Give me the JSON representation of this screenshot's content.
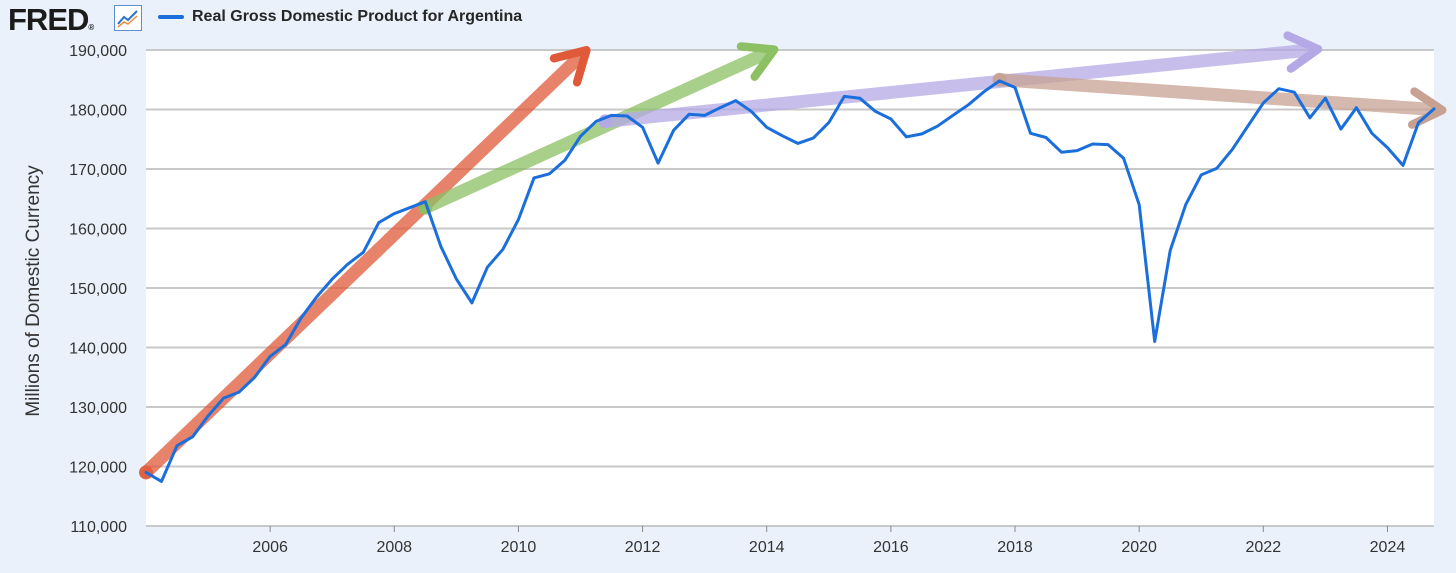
{
  "header": {
    "logo_text": "FRED",
    "logo_icon": "chart-line-icon"
  },
  "colors": {
    "series": "#1a6fdc",
    "background": "#eaf1fb",
    "plot_bg": "#ffffff",
    "grid": "#c8c8c8",
    "arrow_red": "#e05a3a",
    "arrow_green": "#8cc063",
    "arrow_purple": "#b4a8e6",
    "arrow_brown": "#c7a293"
  },
  "chart_data": {
    "type": "line",
    "title": "",
    "xlabel": "",
    "ylabel": "Millions of Domestic Currency",
    "ylim": [
      110000,
      190000
    ],
    "xlim": [
      2004.0,
      2024.75
    ],
    "y_ticks": [
      "110,000",
      "120,000",
      "130,000",
      "140,000",
      "150,000",
      "160,000",
      "170,000",
      "180,000",
      "190,000"
    ],
    "x_ticks": [
      "2006",
      "2008",
      "2010",
      "2012",
      "2014",
      "2016",
      "2018",
      "2020",
      "2022",
      "2024"
    ],
    "grid": "horizontal",
    "legend_position": "top-left",
    "series": [
      {
        "name": "Real Gross Domestic Product for Argentina",
        "x": [
          2004.0,
          2004.25,
          2004.5,
          2004.75,
          2005.0,
          2005.25,
          2005.5,
          2005.75,
          2006.0,
          2006.25,
          2006.5,
          2006.75,
          2007.0,
          2007.25,
          2007.5,
          2007.75,
          2008.0,
          2008.25,
          2008.5,
          2008.75,
          2009.0,
          2009.25,
          2009.5,
          2009.75,
          2010.0,
          2010.25,
          2010.5,
          2010.75,
          2011.0,
          2011.25,
          2011.5,
          2011.75,
          2012.0,
          2012.25,
          2012.5,
          2012.75,
          2013.0,
          2013.25,
          2013.5,
          2013.75,
          2014.0,
          2014.25,
          2014.5,
          2014.75,
          2015.0,
          2015.25,
          2015.5,
          2015.75,
          2016.0,
          2016.25,
          2016.5,
          2016.75,
          2017.0,
          2017.25,
          2017.5,
          2017.75,
          2018.0,
          2018.25,
          2018.5,
          2018.75,
          2019.0,
          2019.25,
          2019.5,
          2019.75,
          2020.0,
          2020.25,
          2020.5,
          2020.75,
          2021.0,
          2021.25,
          2021.5,
          2021.75,
          2022.0,
          2022.25,
          2022.5,
          2022.75,
          2023.0,
          2023.25,
          2023.5,
          2023.75,
          2024.0,
          2024.25,
          2024.5,
          2024.75
        ],
        "values": [
          119000,
          117500,
          123500,
          125000,
          128500,
          131500,
          132500,
          135000,
          138500,
          140500,
          145000,
          148500,
          151500,
          154000,
          156000,
          161000,
          162500,
          163500,
          164500,
          157000,
          151500,
          147500,
          153500,
          156500,
          161500,
          168500,
          169200,
          171500,
          175500,
          178000,
          179000,
          178900,
          177000,
          171000,
          176500,
          179200,
          179000,
          180300,
          181500,
          179700,
          177000,
          175600,
          174300,
          175200,
          177800,
          182200,
          181900,
          179700,
          178400,
          175400,
          175900,
          177200,
          179000,
          180800,
          183000,
          184800,
          183700,
          176000,
          175300,
          172800,
          173100,
          174200,
          174100,
          171800,
          164000,
          141000,
          156300,
          164000,
          169000,
          170100,
          173300,
          177200,
          181100,
          183500,
          182900,
          178600,
          181900,
          176700,
          180300,
          176000,
          173600,
          170600,
          177800,
          180100
        ]
      }
    ],
    "annotations": [
      {
        "type": "arrow",
        "color": "red",
        "from": [
          2004.0,
          119000
        ],
        "to": [
          2011.0,
          189000
        ]
      },
      {
        "type": "arrow",
        "color": "green",
        "from": [
          2008.5,
          163500
        ],
        "to": [
          2014.0,
          189500
        ]
      },
      {
        "type": "arrow",
        "color": "purple",
        "from": [
          2011.4,
          178000
        ],
        "to": [
          2022.75,
          190000
        ]
      },
      {
        "type": "arrow",
        "color": "brown",
        "from": [
          2017.75,
          185000
        ],
        "to": [
          2024.75,
          180000
        ]
      }
    ]
  }
}
